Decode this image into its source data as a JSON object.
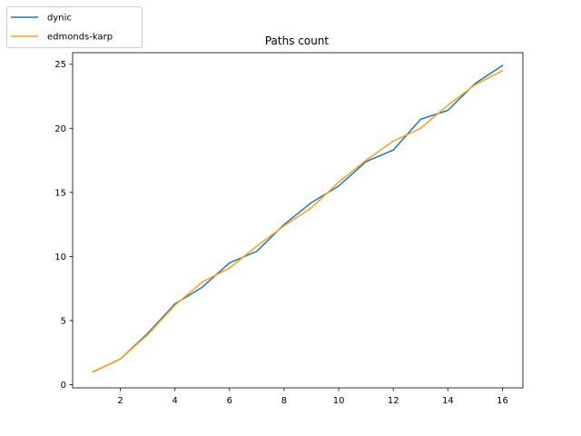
{
  "chart_data": {
    "type": "line",
    "title": "Paths count",
    "xlabel": "",
    "ylabel": "",
    "x": [
      1,
      2,
      3,
      4,
      5,
      6,
      7,
      8,
      9,
      10,
      11,
      12,
      13,
      14,
      15,
      16
    ],
    "series": [
      {
        "name": "dynic",
        "color": "#1f77b4",
        "values": [
          1.0,
          2.0,
          4.0,
          6.3,
          7.6,
          9.5,
          10.4,
          12.5,
          14.2,
          15.5,
          17.4,
          18.3,
          20.7,
          21.4,
          23.5,
          24.9
        ]
      },
      {
        "name": "edmonds-karp",
        "color": "#ff9f0f",
        "values": [
          1.0,
          2.0,
          3.9,
          6.2,
          8.0,
          9.1,
          10.8,
          12.4,
          13.8,
          15.8,
          17.5,
          19.0,
          20.0,
          21.8,
          23.4,
          24.5
        ]
      }
    ],
    "xlim": [
      0.25,
      16.75
    ],
    "ylim": [
      -0.25,
      25.9
    ],
    "xticks": [
      "2",
      "4",
      "6",
      "8",
      "10",
      "12",
      "14",
      "16"
    ],
    "yticks": [
      "0",
      "5",
      "10",
      "15",
      "20",
      "25"
    ],
    "grid": false,
    "legend_position": "upper-left, outside axes"
  }
}
